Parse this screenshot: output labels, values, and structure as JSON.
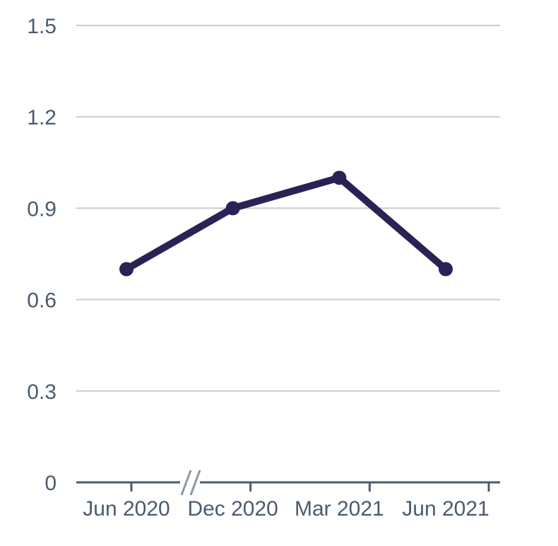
{
  "chart_data": {
    "type": "line",
    "categories": [
      "Jun 2020",
      "Dec 2020",
      "Mar 2021",
      "Jun 2021"
    ],
    "series": [
      {
        "name": "series-1",
        "values": [
          0.7,
          0.9,
          1.0,
          0.7
        ]
      }
    ],
    "y_tick_labels": [
      "1.5",
      "1.2",
      "0.9",
      "0.6",
      "0.3",
      "0"
    ],
    "y_tick_values": [
      1.5,
      1.2,
      0.9,
      0.6,
      0.3,
      0
    ],
    "ylim": [
      0,
      1.5
    ],
    "xlabel": "",
    "ylabel": "",
    "grid": "horizontal",
    "legend": "none",
    "x_axis_break": {
      "present": true,
      "between": [
        "Jun 2020",
        "Dec 2020"
      ],
      "symbol": "//"
    }
  },
  "colors": {
    "line": "#2b2154",
    "marker": "#2b2154",
    "gridline": "#cccccc",
    "axis": "#4a5b6c",
    "tick_text": "#4a5b6c",
    "break_symbol": "#8f979e",
    "background": "#ffffff"
  }
}
